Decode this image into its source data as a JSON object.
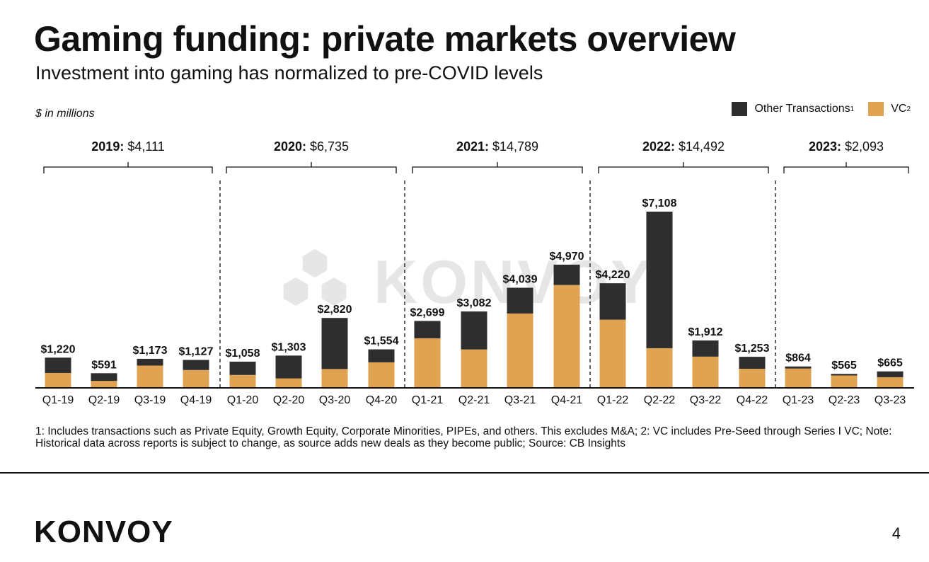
{
  "page": {
    "title": "Gaming funding: private markets overview",
    "subtitle": "Investment into gaming has normalized to pre-COVID levels",
    "units_note": "$ in millions",
    "footnote": "1: Includes transactions such as Private Equity, Growth Equity, Corporate Minorities, PIPEs, and others. This excludes M&A; 2: VC includes Pre-Seed through Series I VC; Note: Historical data across reports is subject to change, as source adds new deals as they become public; Source: CB Insights",
    "logo_text": "KONVOY",
    "watermark_text": "KONVOY",
    "page_number": "4"
  },
  "legend": {
    "other": {
      "label": "Other Transactions",
      "sup": "1"
    },
    "vc": {
      "label": "VC",
      "sup": "2"
    }
  },
  "colors": {
    "other": "#2e2e2e",
    "vc": "#e0a351",
    "axis": "#111111",
    "watermark": "#e6e6e6"
  },
  "chart_data": {
    "type": "bar",
    "stacked": true,
    "ylabel": "$ in millions",
    "categories": [
      "Q1-19",
      "Q2-19",
      "Q3-19",
      "Q4-19",
      "Q1-20",
      "Q2-20",
      "Q3-20",
      "Q4-20",
      "Q1-21",
      "Q2-21",
      "Q3-21",
      "Q4-21",
      "Q1-22",
      "Q2-22",
      "Q3-22",
      "Q4-22",
      "Q1-23",
      "Q2-23",
      "Q3-23"
    ],
    "totals": [
      1220,
      591,
      1173,
      1127,
      1058,
      1303,
      2820,
      1554,
      2699,
      3082,
      4039,
      4970,
      4220,
      7108,
      1912,
      1253,
      864,
      565,
      665
    ],
    "total_labels": [
      "$1,220",
      "$591",
      "$1,173",
      "$1,127",
      "$1,058",
      "$1,303",
      "$2,820",
      "$1,554",
      "$2,699",
      "$3,082",
      "$4,039",
      "$4,970",
      "$4,220",
      "$7,108",
      "$1,912",
      "$1,253",
      "$864",
      "$565",
      "$665"
    ],
    "series": [
      {
        "name": "VC",
        "values": [
          600,
          280,
          900,
          720,
          520,
          380,
          760,
          1030,
          2000,
          1550,
          3000,
          4150,
          2750,
          1600,
          1260,
          770,
          780,
          500,
          430
        ]
      },
      {
        "name": "Other Transactions",
        "values": [
          620,
          311,
          273,
          407,
          538,
          923,
          2060,
          524,
          699,
          1532,
          1039,
          820,
          1470,
          5508,
          652,
          483,
          84,
          65,
          235
        ]
      }
    ],
    "years": [
      {
        "year": "2019:",
        "total": "$4,111"
      },
      {
        "year": "2020:",
        "total": "$6,735"
      },
      {
        "year": "2021:",
        "total": "$14,789"
      },
      {
        "year": "2022:",
        "total": "$14,492"
      },
      {
        "year": "2023:",
        "total": "$2,093"
      }
    ],
    "ylim": [
      0,
      7108
    ],
    "grid": false,
    "legend_position": "top-right"
  }
}
